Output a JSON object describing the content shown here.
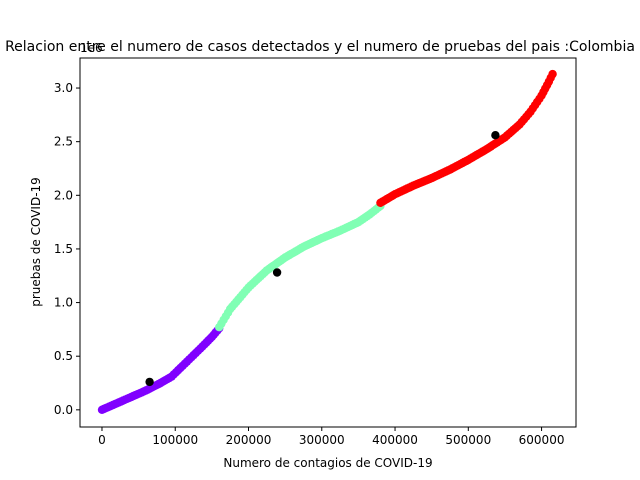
{
  "chart_data": {
    "type": "scatter",
    "title": "Relacion entre  el numero de casos detectados y el numero de pruebas del pais :Colombia",
    "xlabel": "Numero de contagios  de COVID-19",
    "ylabel": "pruebas de COVID-19",
    "y_offset_label": "1e6",
    "xlim": [
      -30000,
      647000
    ],
    "ylim": [
      -0.16,
      3.28
    ],
    "xticks": [
      0,
      100000,
      200000,
      300000,
      400000,
      500000,
      600000
    ],
    "xtick_labels": [
      "0",
      "100000",
      "200000",
      "300000",
      "400000",
      "500000",
      "600000"
    ],
    "yticks": [
      0.0,
      0.5,
      1.0,
      1.5,
      2.0,
      2.5,
      3.0
    ],
    "ytick_labels": [
      "0.0",
      "0.5",
      "1.0",
      "1.5",
      "2.0",
      "2.5",
      "3.0"
    ],
    "grid": false,
    "legend": "none",
    "series": [
      {
        "color": "#8000ff",
        "x": [
          0,
          10000,
          20000,
          40000,
          60000,
          80000,
          95000,
          110000,
          125000,
          140000,
          150000,
          160000
        ],
        "y": [
          0.0,
          0.03,
          0.06,
          0.12,
          0.18,
          0.25,
          0.31,
          0.41,
          0.51,
          0.61,
          0.68,
          0.76
        ]
      },
      {
        "color": "#80ffb4",
        "x": [
          160000,
          175000,
          200000,
          225000,
          250000,
          275000,
          300000,
          325000,
          350000,
          365000,
          380000
        ],
        "y": [
          0.77,
          0.94,
          1.14,
          1.3,
          1.42,
          1.52,
          1.6,
          1.67,
          1.75,
          1.82,
          1.9
        ]
      },
      {
        "color": "#ff0000",
        "x": [
          380000,
          400000,
          425000,
          450000,
          475000,
          500000,
          525000,
          550000,
          570000,
          585000,
          600000,
          610000,
          615000
        ],
        "y": [
          1.93,
          2.01,
          2.09,
          2.16,
          2.24,
          2.33,
          2.43,
          2.54,
          2.66,
          2.78,
          2.93,
          3.06,
          3.13
        ]
      }
    ],
    "centroids": {
      "color": "#000000",
      "x": [
        65000,
        239000,
        537000
      ],
      "y": [
        0.26,
        1.28,
        2.56
      ]
    }
  }
}
